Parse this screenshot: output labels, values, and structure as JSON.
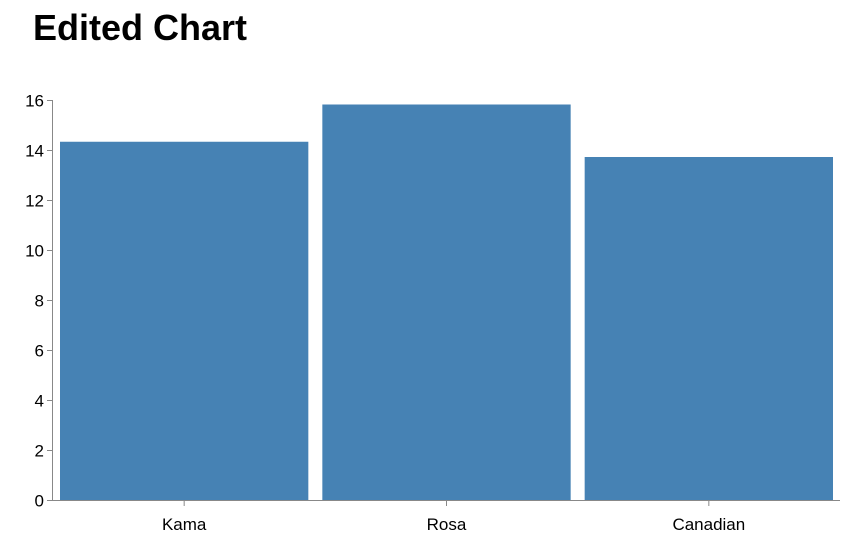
{
  "title": "Edited Chart",
  "chart_data": {
    "type": "bar",
    "categories": [
      "Kama",
      "Rosa",
      "Canadian"
    ],
    "values": [
      14.33,
      15.82,
      13.72
    ],
    "title": "Edited Chart",
    "xlabel": "",
    "ylabel": "",
    "ylim": [
      0,
      16
    ],
    "yticks": [
      0,
      2,
      4,
      6,
      8,
      10,
      12,
      14,
      16
    ],
    "grid": false,
    "bar_color": "#4682b4",
    "axis_color": "#888888"
  }
}
